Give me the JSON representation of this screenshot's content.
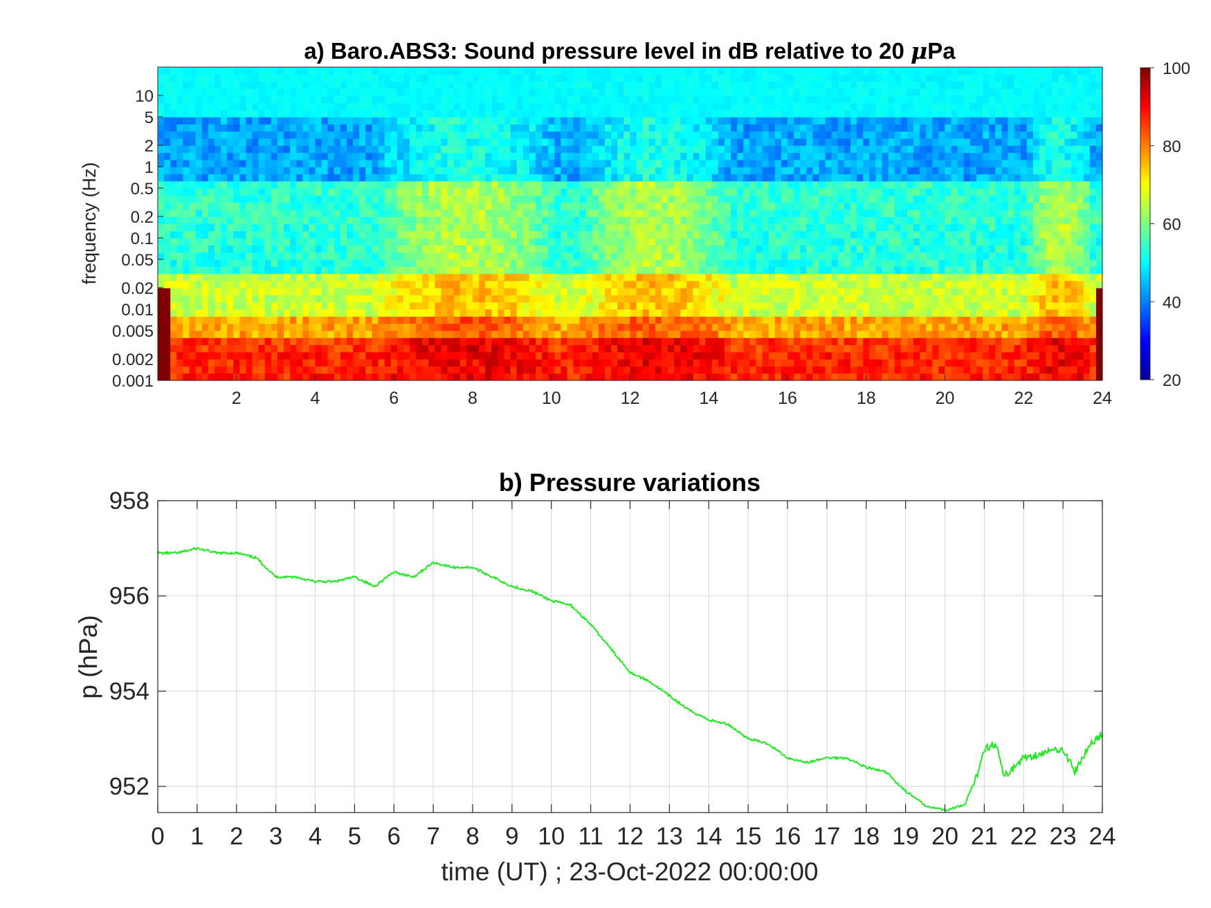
{
  "chart_data": [
    {
      "type": "heatmap",
      "title": "a) Baro.ABS3: Sound pressure level in dB relative to 20 ",
      "title_mu": "μ",
      "title_tail": "Pa",
      "xlabel": "",
      "ylabel": "frequency (Hz)",
      "xlim": [
        0,
        24
      ],
      "x_ticks": [
        "2",
        "4",
        "6",
        "8",
        "10",
        "12",
        "14",
        "16",
        "18",
        "20",
        "22",
        "24"
      ],
      "y_scale": "log",
      "ylim": [
        0.001,
        25
      ],
      "y_ticks": [
        "10",
        "5",
        "2",
        "1",
        "0.5",
        "0.2",
        "0.1",
        "0.05",
        "0.02",
        "0.01",
        "0.005",
        "0.002",
        "0.001"
      ],
      "colormap": "jet",
      "clim": [
        20,
        100
      ],
      "colorbar_ticks": [
        "100",
        "80",
        "60",
        "40",
        "20"
      ],
      "colorbar_position": "right",
      "energetic_periods": [
        {
          "start": 5.7,
          "end": 10.0
        },
        {
          "start": 11.0,
          "end": 14.3
        },
        {
          "start": 22.5,
          "end": 23.3
        }
      ]
    },
    {
      "type": "line",
      "title": "b) Pressure variations",
      "xlabel": "time (UT) ; 23-Oct-2022 00:00:00",
      "ylabel": "p (hPa)",
      "xlim": [
        0,
        24
      ],
      "ylim": [
        951.45,
        958
      ],
      "x_ticks": [
        "0",
        "1",
        "2",
        "3",
        "4",
        "5",
        "6",
        "7",
        "8",
        "9",
        "10",
        "11",
        "12",
        "13",
        "14",
        "15",
        "16",
        "17",
        "18",
        "19",
        "20",
        "21",
        "22",
        "23",
        "24"
      ],
      "y_ticks": [
        "958",
        "956",
        "954",
        "952"
      ],
      "grid": true,
      "line_color": "#1ee81e",
      "x": [
        0,
        0.5,
        1,
        1.5,
        2,
        2.5,
        3,
        3.5,
        4,
        4.5,
        5,
        5.5,
        6,
        6.5,
        7,
        7.5,
        8,
        8.5,
        9,
        9.5,
        10,
        10.5,
        11,
        11.5,
        12,
        12.5,
        13,
        13.5,
        14,
        14.5,
        15,
        15.5,
        16,
        16.5,
        17,
        17.5,
        18,
        18.5,
        19,
        19.5,
        20,
        20.5,
        20.8,
        21,
        21.3,
        21.5,
        22,
        22.5,
        23,
        23.3,
        23.7,
        24
      ],
      "y": [
        956.9,
        956.9,
        957.0,
        956.9,
        956.9,
        956.8,
        956.4,
        956.4,
        956.3,
        956.3,
        956.4,
        956.2,
        956.5,
        956.4,
        956.7,
        956.6,
        956.6,
        956.4,
        956.2,
        956.1,
        955.9,
        955.8,
        955.4,
        954.9,
        954.4,
        954.2,
        953.9,
        953.6,
        953.4,
        953.3,
        953.0,
        952.9,
        952.6,
        952.5,
        952.6,
        952.6,
        952.4,
        952.3,
        951.9,
        951.6,
        951.5,
        951.6,
        952.2,
        952.8,
        952.9,
        952.2,
        952.6,
        952.7,
        952.8,
        952.3,
        952.9,
        953.1
      ]
    }
  ]
}
